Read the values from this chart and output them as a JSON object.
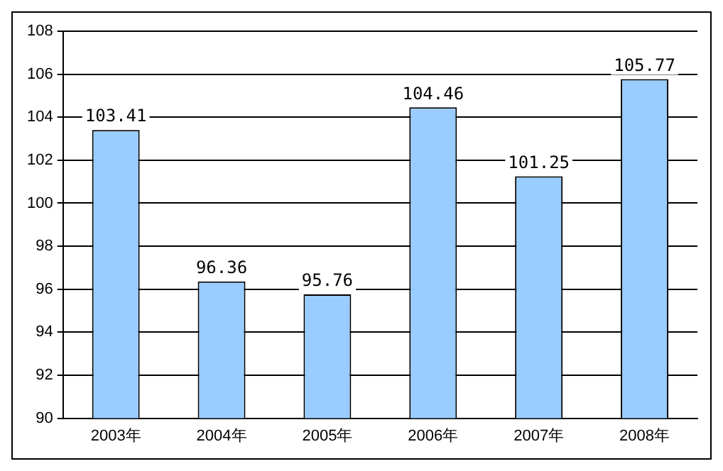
{
  "chart_data": {
    "type": "bar",
    "categories": [
      "2003年",
      "2004年",
      "2005年",
      "2006年",
      "2007年",
      "2008年"
    ],
    "values": [
      103.41,
      96.36,
      95.76,
      104.46,
      101.25,
      105.77
    ],
    "color": "#99ccff",
    "ylim": [
      90,
      108
    ],
    "yticks": [
      90,
      92,
      94,
      96,
      98,
      100,
      102,
      104,
      106,
      108
    ],
    "grid": "y",
    "data_labels": true
  }
}
